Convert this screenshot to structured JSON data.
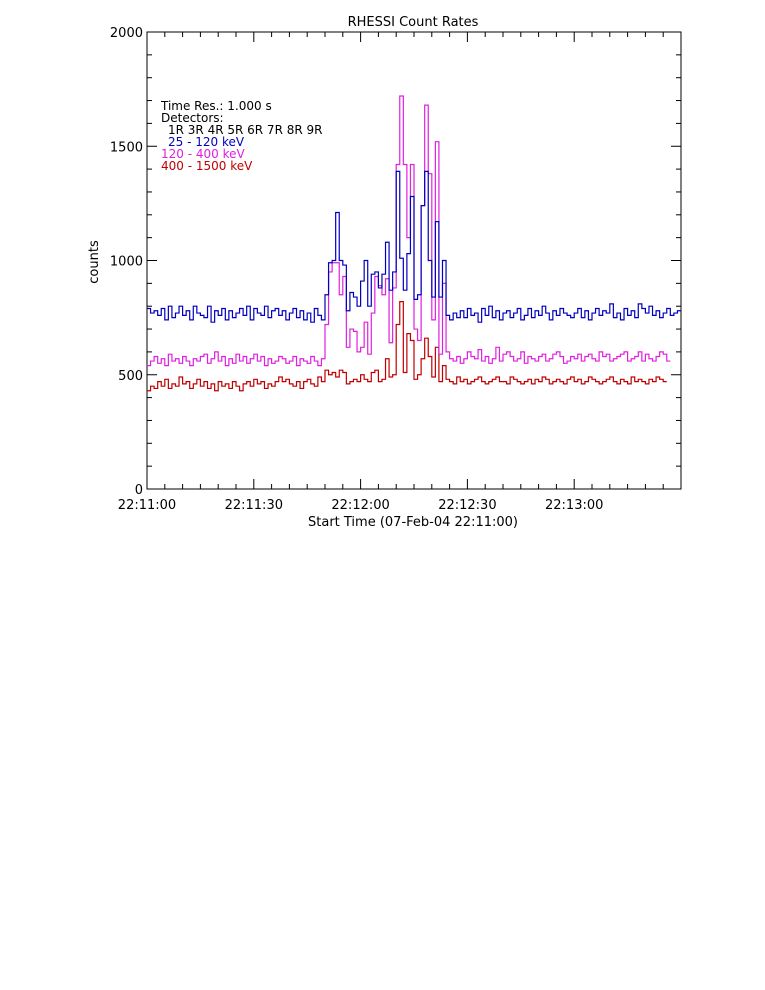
{
  "chart_data": {
    "type": "line",
    "step": true,
    "title": "RHESSI Count Rates",
    "xlabel": "Start Time (07-Feb-04 22:11:00)",
    "ylabel": "counts",
    "x_unit": "seconds after 22:11:00",
    "xlim": [
      0,
      150
    ],
    "ylim": [
      0,
      2000
    ],
    "x_ticks": [
      {
        "value": 0,
        "label": "22:11:00"
      },
      {
        "value": 30,
        "label": "22:11:30"
      },
      {
        "value": 60,
        "label": "22:12:00"
      },
      {
        "value": 90,
        "label": "22:12:30"
      },
      {
        "value": 120,
        "label": "22:13:00"
      }
    ],
    "y_ticks": [
      {
        "value": 0,
        "label": "0"
      },
      {
        "value": 500,
        "label": "500"
      },
      {
        "value": 1000,
        "label": "1000"
      },
      {
        "value": 1500,
        "label": "1500"
      },
      {
        "value": 2000,
        "label": "2000"
      }
    ],
    "annotations": {
      "time_res": "Time Res.: 1.000 s",
      "detectors_title": "Detectors:",
      "detectors": "1R 3R 4R 5R 6R 7R 8R 9R"
    },
    "series": [
      {
        "name": "25 - 120 keV",
        "color": "#0000c0",
        "values": [
          790,
          770,
          780,
          760,
          790,
          740,
          800,
          750,
          770,
          800,
          760,
          780,
          740,
          800,
          770,
          760,
          750,
          800,
          730,
          780,
          760,
          790,
          740,
          780,
          750,
          770,
          790,
          760,
          800,
          740,
          790,
          770,
          760,
          800,
          750,
          780,
          790,
          760,
          780,
          740,
          770,
          790,
          750,
          780,
          740,
          770,
          730,
          790,
          760,
          740,
          850,
          990,
          1000,
          1210,
          1000,
          980,
          780,
          860,
          840,
          800,
          910,
          1000,
          800,
          940,
          950,
          880,
          940,
          1080,
          870,
          950,
          1390,
          1010,
          870,
          1030,
          1280,
          830,
          850,
          1240,
          1390,
          1000,
          840,
          1170,
          840,
          1000,
          760,
          740,
          770,
          750,
          780,
          750,
          790,
          760,
          770,
          730,
          790,
          760,
          800,
          750,
          780,
          740,
          770,
          780,
          750,
          770,
          790,
          740,
          760,
          790,
          750,
          780,
          760,
          800,
          770,
          740,
          780,
          760,
          790,
          770,
          760,
          750,
          770,
          790,
          750,
          780,
          740,
          770,
          790,
          760,
          780,
          770,
          810,
          750,
          770,
          740,
          790,
          760,
          780,
          750,
          810,
          790,
          770,
          800,
          760,
          780,
          750,
          770,
          790,
          760,
          770,
          780
        ]
      },
      {
        "name": "120 - 400 keV",
        "color": "#e020e0",
        "values": [
          540,
          560,
          580,
          550,
          570,
          540,
          590,
          560,
          570,
          550,
          580,
          560,
          540,
          570,
          560,
          580,
          590,
          550,
          570,
          600,
          560,
          580,
          540,
          570,
          550,
          590,
          560,
          580,
          550,
          570,
          590,
          560,
          580,
          540,
          570,
          550,
          560,
          580,
          570,
          550,
          560,
          580,
          540,
          570,
          560,
          550,
          580,
          560,
          540,
          570,
          720,
          950,
          990,
          990,
          850,
          930,
          620,
          700,
          690,
          600,
          620,
          730,
          590,
          770,
          930,
          890,
          850,
          920,
          640,
          880,
          1420,
          1720,
          1420,
          1100,
          1420,
          700,
          650,
          1240,
          1680,
          1380,
          740,
          1520,
          590,
          900,
          600,
          570,
          560,
          580,
          550,
          570,
          600,
          580,
          570,
          610,
          560,
          580,
          550,
          570,
          620,
          560,
          590,
          600,
          580,
          560,
          570,
          600,
          550,
          580,
          570,
          560,
          580,
          590,
          560,
          570,
          590,
          600,
          580,
          550,
          560,
          580,
          570,
          590,
          560,
          580,
          590,
          570,
          560,
          600,
          580,
          590,
          560,
          570,
          580,
          590,
          600,
          560,
          570,
          580,
          600,
          560,
          590,
          570,
          560,
          580,
          600,
          590,
          560
        ]
      },
      {
        "name": "400 - 1500 keV",
        "color": "#c00000",
        "values": [
          430,
          450,
          440,
          470,
          450,
          480,
          440,
          460,
          450,
          490,
          460,
          470,
          440,
          460,
          480,
          450,
          470,
          440,
          460,
          430,
          470,
          450,
          460,
          440,
          470,
          450,
          430,
          460,
          470,
          450,
          480,
          460,
          470,
          440,
          460,
          450,
          470,
          490,
          470,
          480,
          460,
          450,
          470,
          440,
          470,
          480,
          460,
          450,
          490,
          470,
          520,
          500,
          510,
          490,
          520,
          510,
          460,
          470,
          480,
          470,
          500,
          480,
          470,
          510,
          520,
          470,
          480,
          570,
          490,
          500,
          720,
          820,
          510,
          680,
          650,
          480,
          500,
          570,
          660,
          580,
          490,
          620,
          470,
          540,
          480,
          470,
          460,
          490,
          470,
          480,
          460,
          470,
          480,
          490,
          470,
          460,
          470,
          480,
          490,
          470,
          470,
          460,
          490,
          480,
          470,
          460,
          470,
          480,
          460,
          480,
          470,
          490,
          480,
          460,
          470,
          480,
          470,
          460,
          480,
          490,
          470,
          480,
          460,
          470,
          490,
          480,
          470,
          460,
          470,
          480,
          490,
          470,
          460,
          480,
          470,
          460,
          490,
          470,
          480,
          470,
          460,
          480,
          470,
          490,
          480,
          470
        ]
      }
    ]
  }
}
